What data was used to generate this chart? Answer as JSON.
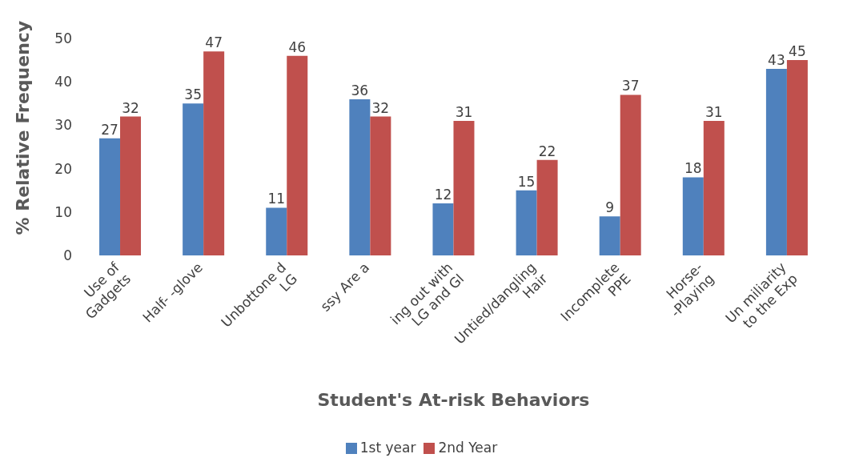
{
  "chart_data": {
    "type": "bar",
    "xlabel": "Student's At-risk Behaviors",
    "ylabel": "% Relative Frequency",
    "categories": [
      "Use of Gadgets",
      "Half- -glove",
      "Unbottone d LG",
      "ssy Are a",
      "ing out with LG and GI",
      "Untied/dangling Hair",
      "Incomplete PPE",
      "Horse- -Playing",
      "Un miliarity to the Exp"
    ],
    "series": [
      {
        "name": "1st year",
        "color": "#4f81bd",
        "values": [
          27,
          35,
          11,
          36,
          12,
          15,
          9,
          18,
          43
        ]
      },
      {
        "name": "2nd Year",
        "color": "#c0504d",
        "values": [
          32,
          47,
          46,
          32,
          31,
          22,
          37,
          31,
          45
        ]
      }
    ],
    "ylim": [
      0,
      50
    ],
    "yticks": [
      0,
      10,
      20,
      30,
      40,
      50
    ],
    "data_labels": true,
    "legend": "bottom",
    "grid": false
  }
}
